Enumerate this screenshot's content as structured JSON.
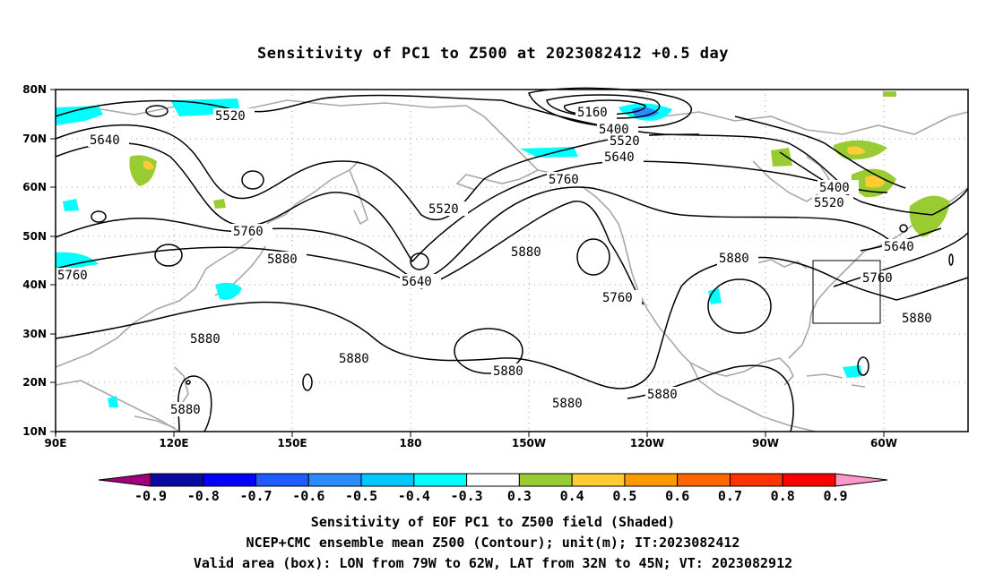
{
  "title": "Sensitivity of PC1 to Z500 at 2023082412 +0.5 day",
  "lat_labels": [
    "80N",
    "70N",
    "60N",
    "50N",
    "40N",
    "30N",
    "20N",
    "10N"
  ],
  "lon_labels": [
    "90E",
    "120E",
    "150E",
    "180",
    "150W",
    "120W",
    "90W",
    "60W"
  ],
  "contour_labels": {
    "c5520a": "5520",
    "c5640a": "5640",
    "c5160": "5160",
    "c5400a": "5400",
    "c5520b": "5520",
    "c5640b": "5640",
    "c5760a": "5760",
    "c5520c": "5520",
    "c5760b": "5760",
    "c5880a": "5880",
    "c5640c": "5640",
    "c5880b": "5880",
    "c5760c": "5760",
    "c5880c": "5880",
    "c5400b": "5400",
    "c5520d": "5520",
    "c5640d": "5640",
    "c5760d": "5760",
    "c5760e": "5760",
    "c5880d": "5880",
    "c5880e": "5880",
    "c5880f": "5880",
    "c5880g": "5880",
    "c5880h": "5880",
    "c5880i": "5880",
    "c5880j": "5880"
  },
  "colorbar": {
    "ticks": [
      "-0.9",
      "-0.8",
      "-0.7",
      "-0.6",
      "-0.5",
      "-0.4",
      "-0.3",
      "0.3",
      "0.4",
      "0.5",
      "0.6",
      "0.7",
      "0.8",
      "0.9"
    ],
    "colors": [
      "#a0007a",
      "#0a0aa0",
      "#0000ff",
      "#1f5cff",
      "#2c8cff",
      "#00c8ff",
      "#00ffff",
      "#ffffff",
      "#99cc33",
      "#ffcc33",
      "#ff9900",
      "#ff6600",
      "#ff3300",
      "#ff0000",
      "#ff99cc"
    ]
  },
  "valid_box": {
    "lon_from": "79W",
    "lon_to": "62W",
    "lat_from": "32N",
    "lat_to": "45N"
  },
  "captions": {
    "line1": "Sensitivity of EOF PC1 to Z500 field (Shaded)",
    "line2": "NCEP+CMC ensemble mean Z500 (Contour); unit(m); IT:2023082412",
    "line3": "Valid area (box): LON from 79W to 62W, LAT from 32N to 45N; VT: 2023082912"
  }
}
